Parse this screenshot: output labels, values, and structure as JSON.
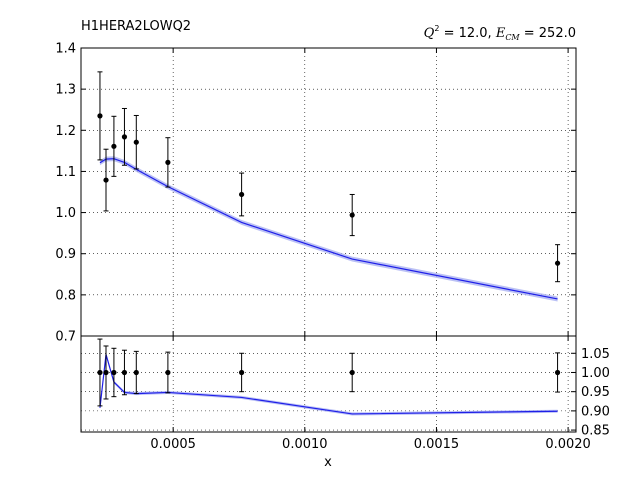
{
  "chart_data": {
    "type": "line",
    "title_left": "H1HERA2LOWQ2",
    "kinematics": {
      "q2_symbol": "Q",
      "q2_sup": "2",
      "q2_text": " = 12.0, ",
      "ecm_symbol": "E",
      "ecm_sub": "CM",
      "ecm_text": " = 252.0"
    },
    "xlabel": "x",
    "xlim": [
      0.00015,
      0.00203
    ],
    "xticks": [
      "0.0005",
      "0.0010",
      "0.0015",
      "0.0020"
    ],
    "xtick_values": [
      0.0005,
      0.001,
      0.0015,
      0.002
    ],
    "grid": true,
    "colors": {
      "theory": "#1f1fe8",
      "band": "#aab2f2",
      "data": "#000000"
    },
    "top_panel": {
      "ylim": [
        0.7,
        1.4
      ],
      "yticks": [
        "0.7",
        "0.8",
        "0.9",
        "1.0",
        "1.1",
        "1.2",
        "1.3",
        "1.4"
      ],
      "ytick_values": [
        0.7,
        0.8,
        0.9,
        1.0,
        1.1,
        1.2,
        1.3,
        1.4
      ],
      "data_points": [
        {
          "x": 0.000222,
          "y": 1.235,
          "err": 0.107
        },
        {
          "x": 0.000245,
          "y": 1.079,
          "err": 0.075
        },
        {
          "x": 0.000275,
          "y": 1.161,
          "err": 0.073
        },
        {
          "x": 0.000315,
          "y": 1.184,
          "err": 0.069
        },
        {
          "x": 0.00036,
          "y": 1.171,
          "err": 0.065
        },
        {
          "x": 0.00048,
          "y": 1.122,
          "err": 0.06
        },
        {
          "x": 0.00076,
          "y": 1.044,
          "err": 0.052
        },
        {
          "x": 0.00118,
          "y": 0.994,
          "err": 0.05
        },
        {
          "x": 0.00196,
          "y": 0.877,
          "err": 0.045
        }
      ],
      "theory": {
        "x": [
          0.000222,
          0.000245,
          0.000275,
          0.000315,
          0.00036,
          0.00048,
          0.00076,
          0.00118,
          0.00196
        ],
        "y": [
          1.121,
          1.13,
          1.131,
          1.122,
          1.105,
          1.063,
          0.976,
          0.887,
          0.79
        ],
        "band": 0.006
      }
    },
    "ratio_panel": {
      "ylim": [
        0.845,
        1.095
      ],
      "yticks": [
        "0.85",
        "0.90",
        "0.95",
        "1.00",
        "1.05"
      ],
      "ytick_values": [
        0.85,
        0.9,
        0.95,
        1.0,
        1.05
      ],
      "data_points": [
        {
          "x": 0.000222,
          "y": 1.0,
          "err": 0.087
        },
        {
          "x": 0.000245,
          "y": 1.0,
          "err": 0.069
        },
        {
          "x": 0.000275,
          "y": 1.0,
          "err": 0.063
        },
        {
          "x": 0.000315,
          "y": 1.0,
          "err": 0.058
        },
        {
          "x": 0.00036,
          "y": 1.0,
          "err": 0.055
        },
        {
          "x": 0.00048,
          "y": 1.0,
          "err": 0.053
        },
        {
          "x": 0.00076,
          "y": 1.0,
          "err": 0.05
        },
        {
          "x": 0.00118,
          "y": 1.0,
          "err": 0.05
        },
        {
          "x": 0.00196,
          "y": 1.0,
          "err": 0.051
        }
      ],
      "theory": {
        "x": [
          0.000222,
          0.000245,
          0.000275,
          0.000315,
          0.00036,
          0.00048,
          0.00076,
          0.00118,
          0.00196
        ],
        "y": [
          0.908,
          1.047,
          0.975,
          0.948,
          0.945,
          0.948,
          0.935,
          0.892,
          0.899
        ],
        "band": 0.004
      }
    }
  }
}
